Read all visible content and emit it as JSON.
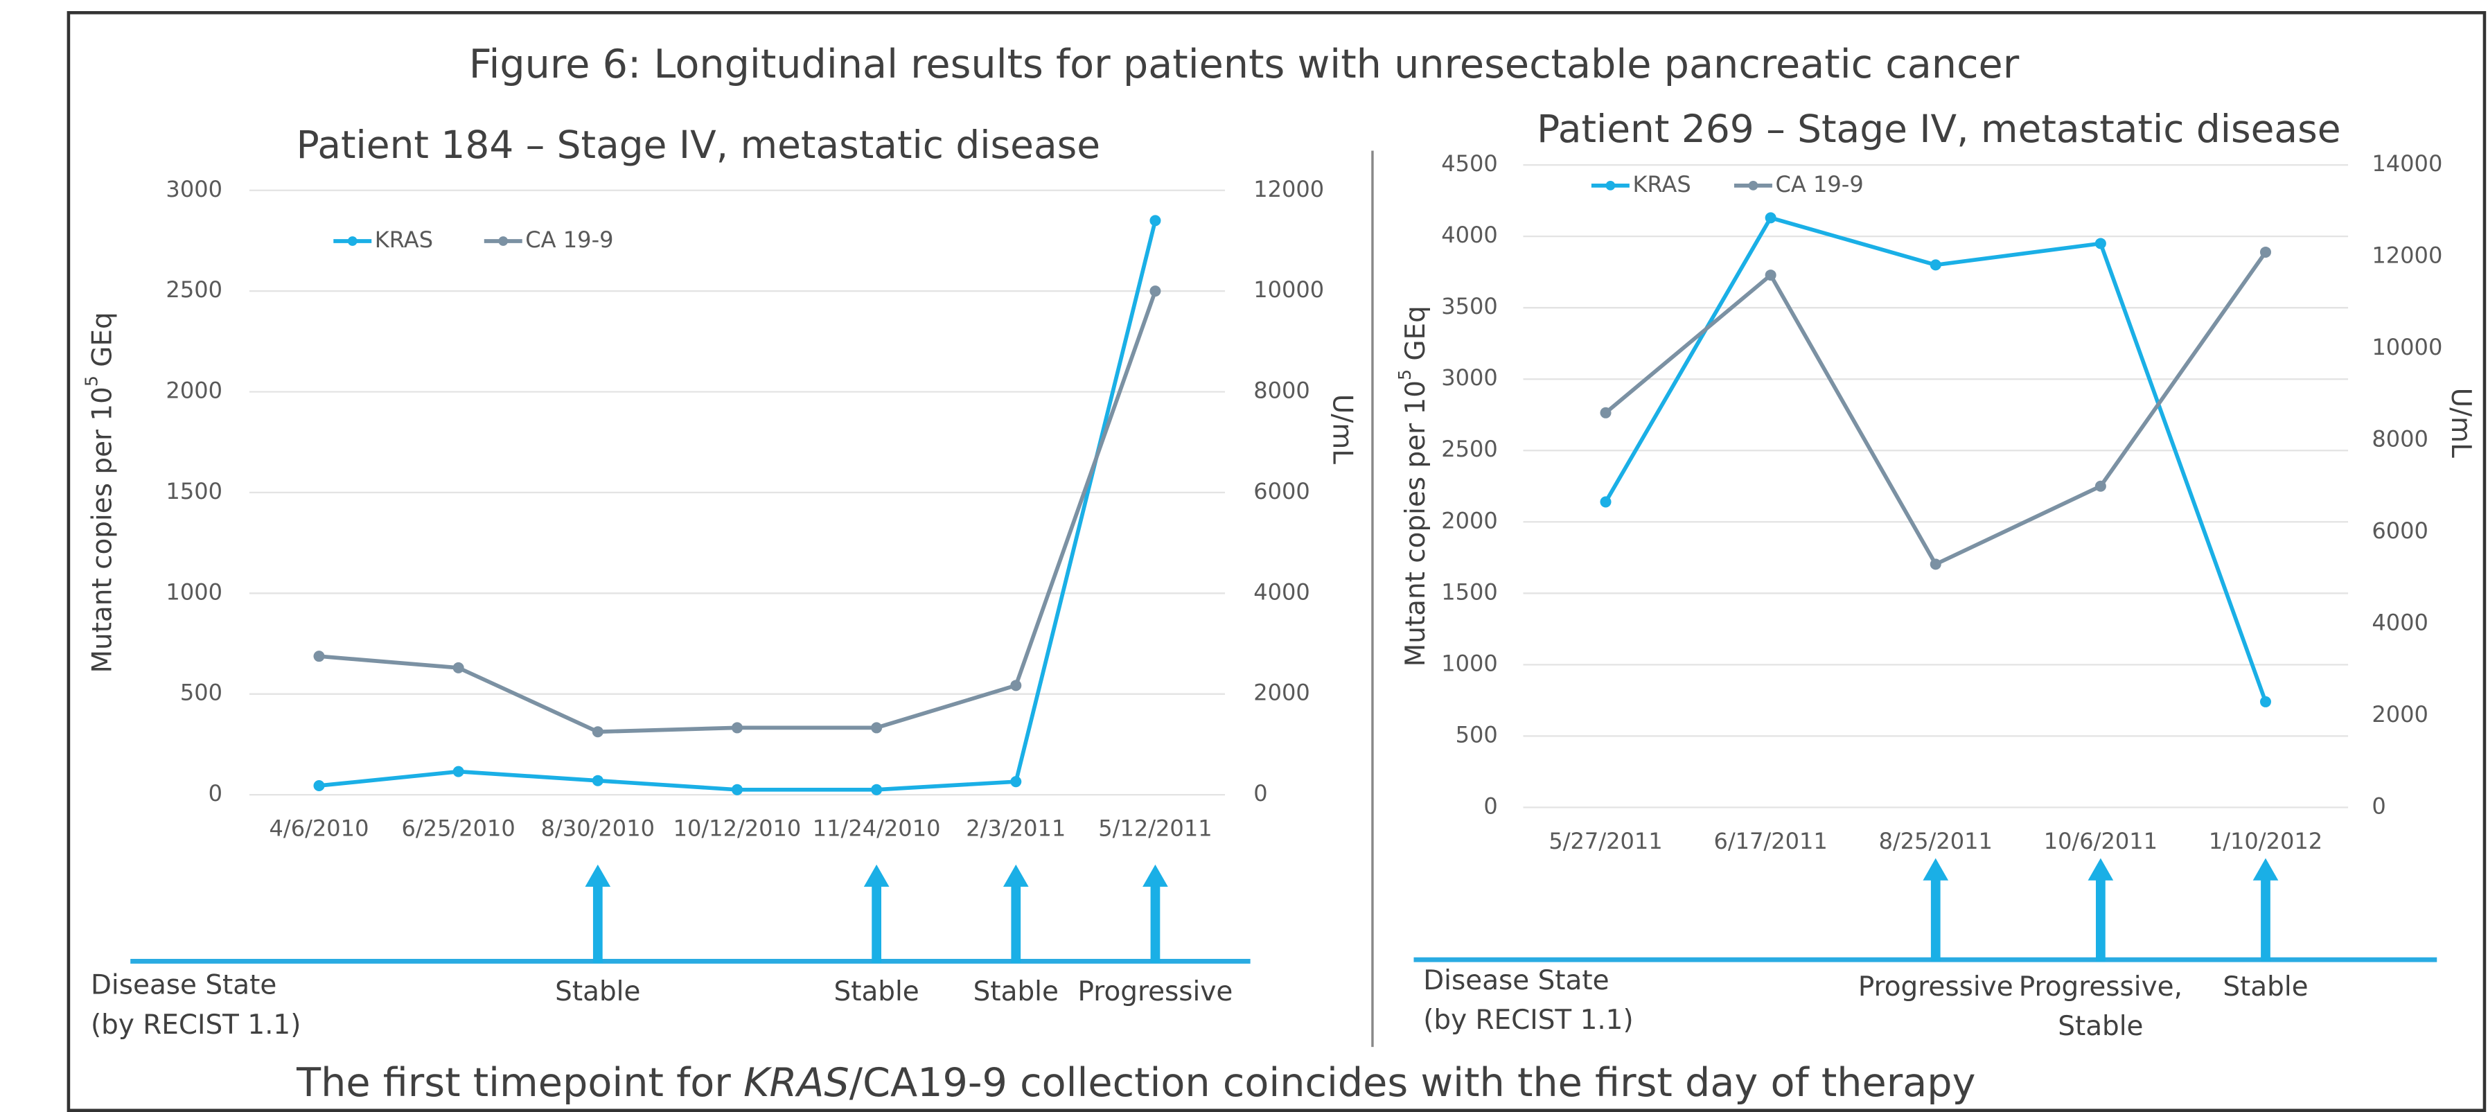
{
  "title": "Figure 6: Longitudinal results for patients with unresectable pancreatic cancer",
  "footnote": [
    "The first timepoint for ",
    "KRAS",
    "/CA19-9 collection coincides with the first day of therapy"
  ],
  "chart_data": [
    {
      "type": "line",
      "title": "Patient 184 – Stage IV, metastatic disease",
      "categories": [
        "4/6/2010",
        "6/25/2010",
        "8/30/2010",
        "10/12/2010",
        "11/24/2010",
        "2/3/2011",
        "5/12/2011"
      ],
      "series": [
        {
          "name": "KRAS",
          "color": "#1aafe6",
          "values": [
            45,
            115,
            70,
            25,
            25,
            65,
            2850
          ]
        },
        {
          "name": "CA 19-9",
          "color": "#7b91a3",
          "axis": "y2",
          "values": [
            2750,
            2520,
            1250,
            1330,
            1330,
            2170,
            10000
          ]
        }
      ],
      "ylabel": [
        "Mutant copies per 10",
        "5",
        " GEq"
      ],
      "y2label": "U/mL",
      "ylim": [
        0,
        3000
      ],
      "yticks": [
        0,
        500,
        1000,
        1500,
        2000,
        2500,
        3000
      ],
      "y2lim": [
        0,
        12000
      ],
      "y2ticks": [
        0,
        2000,
        4000,
        6000,
        8000,
        10000,
        12000
      ],
      "grid": true,
      "disease_state_label": [
        "Disease State",
        "(by RECIST 1.1)"
      ],
      "annotations": [
        {
          "x": "8/30/2010",
          "label": [
            "Stable"
          ]
        },
        {
          "x": "11/24/2010",
          "label": [
            "Stable"
          ]
        },
        {
          "x": "2/3/2011",
          "label": [
            "Stable"
          ]
        },
        {
          "x": "5/12/2011",
          "label": [
            "Progressive"
          ]
        }
      ]
    },
    {
      "type": "line",
      "title": "Patient 269 – Stage IV, metastatic disease",
      "categories": [
        "5/27/2011",
        "6/17/2011",
        "8/25/2011",
        "10/6/2011",
        "1/10/2012"
      ],
      "series": [
        {
          "name": "KRAS",
          "color": "#1aafe6",
          "values": [
            2140,
            4130,
            3800,
            3950,
            740
          ]
        },
        {
          "name": "CA 19-9",
          "color": "#7b91a3",
          "axis": "y2",
          "values": [
            8600,
            11600,
            5300,
            7000,
            12100
          ]
        }
      ],
      "ylabel": [
        "Mutant copies per 10",
        "5",
        " GEq"
      ],
      "y2label": "U/mL",
      "ylim": [
        0,
        4500
      ],
      "yticks": [
        0,
        500,
        1000,
        1500,
        2000,
        2500,
        3000,
        3500,
        4000,
        4500
      ],
      "y2lim": [
        0,
        14000
      ],
      "y2ticks": [
        0,
        2000,
        4000,
        6000,
        8000,
        10000,
        12000,
        14000
      ],
      "grid": true,
      "disease_state_label": [
        "Disease State",
        "(by RECIST 1.1)"
      ],
      "annotations": [
        {
          "x": "8/25/2011",
          "label": [
            "Progressive"
          ]
        },
        {
          "x": "10/6/2011",
          "label": [
            "Progressive,",
            "Stable"
          ]
        },
        {
          "x": "1/10/2012",
          "label": [
            "Stable"
          ]
        }
      ]
    }
  ]
}
